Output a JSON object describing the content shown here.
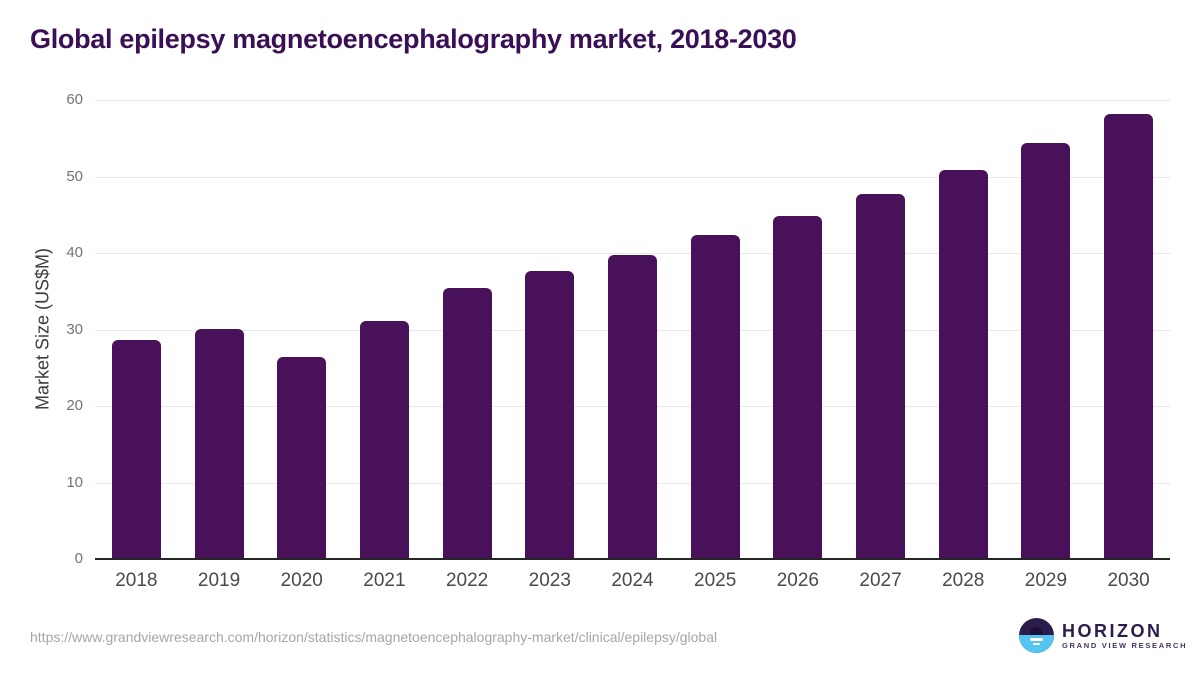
{
  "title": "Global epilepsy magnetoencephalography market, 2018-2030",
  "chart_data": {
    "type": "bar",
    "title": "Global epilepsy magnetoencephalography market, 2018-2030",
    "xlabel": "",
    "ylabel": "Market Size (US$M)",
    "categories": [
      "2018",
      "2019",
      "2020",
      "2021",
      "2022",
      "2023",
      "2024",
      "2025",
      "2026",
      "2027",
      "2028",
      "2029",
      "2030"
    ],
    "values": [
      28.6,
      30.1,
      26.4,
      31.1,
      35.4,
      37.6,
      39.8,
      42.3,
      44.9,
      47.7,
      50.9,
      54.4,
      58.2
    ],
    "ylim": [
      0,
      60
    ],
    "yticks": [
      0,
      10,
      20,
      30,
      40,
      50,
      60
    ],
    "grid": "horizontal",
    "legend": "none"
  },
  "colors": {
    "bar": "#481159",
    "title": "#3a0f55",
    "axis_line": "#262626",
    "gridline": "#e8e8e8",
    "y_tick": "#737373",
    "x_tick": "#4a4a4a",
    "y_title": "#3c3c3c",
    "url": "#a6a6a6",
    "logo_purple": "#2c1b4d",
    "logo_blue": "#55c4f0"
  },
  "footer": {
    "source_url": "https://www.grandviewresearch.com/horizon/statistics/magnetoencephalography-market/clinical/epilepsy/global",
    "logo": {
      "title": "HORIZON",
      "subtitle": "GRAND VIEW RESEARCH"
    }
  }
}
